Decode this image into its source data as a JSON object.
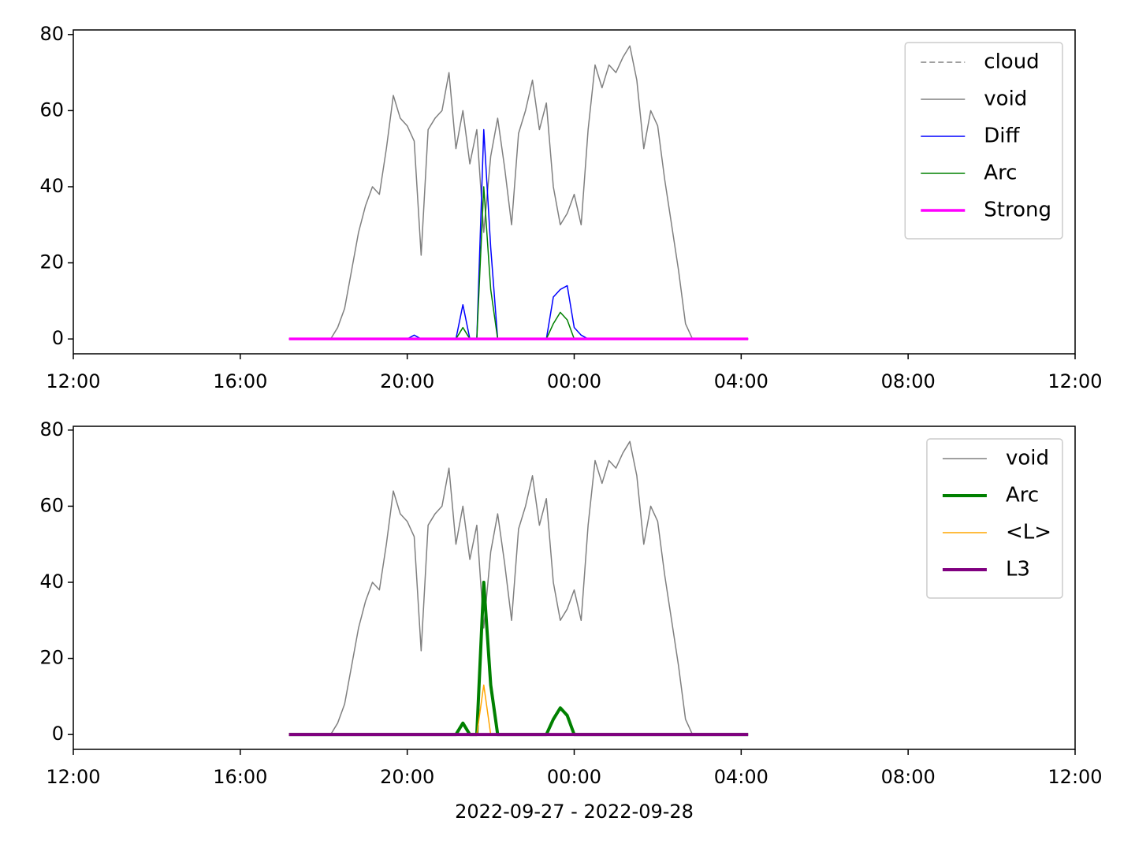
{
  "chart_data": [
    {
      "type": "line",
      "x": [
        "2022-09-27 17:10",
        "2022-09-27 17:20",
        "2022-09-27 17:30",
        "2022-09-27 17:40",
        "2022-09-27 17:50",
        "2022-09-27 18:00",
        "2022-09-27 18:10",
        "2022-09-27 18:20",
        "2022-09-27 18:30",
        "2022-09-27 18:40",
        "2022-09-27 18:50",
        "2022-09-27 19:00",
        "2022-09-27 19:10",
        "2022-09-27 19:20",
        "2022-09-27 19:30",
        "2022-09-27 19:40",
        "2022-09-27 19:50",
        "2022-09-27 20:00",
        "2022-09-27 20:10",
        "2022-09-27 20:20",
        "2022-09-27 20:30",
        "2022-09-27 20:40",
        "2022-09-27 20:50",
        "2022-09-27 21:00",
        "2022-09-27 21:10",
        "2022-09-27 21:20",
        "2022-09-27 21:30",
        "2022-09-27 21:40",
        "2022-09-27 21:50",
        "2022-09-27 22:00",
        "2022-09-27 22:10",
        "2022-09-27 22:20",
        "2022-09-27 22:30",
        "2022-09-27 22:40",
        "2022-09-27 22:50",
        "2022-09-27 23:00",
        "2022-09-27 23:10",
        "2022-09-27 23:20",
        "2022-09-27 23:30",
        "2022-09-27 23:40",
        "2022-09-27 23:50",
        "2022-09-28 00:00",
        "2022-09-28 00:10",
        "2022-09-28 00:20",
        "2022-09-28 00:30",
        "2022-09-28 00:40",
        "2022-09-28 00:50",
        "2022-09-28 01:00",
        "2022-09-28 01:10",
        "2022-09-28 01:20",
        "2022-09-28 01:30",
        "2022-09-28 01:40",
        "2022-09-28 01:50",
        "2022-09-28 02:00",
        "2022-09-28 02:10",
        "2022-09-28 02:20",
        "2022-09-28 02:30",
        "2022-09-28 02:40",
        "2022-09-28 02:50",
        "2022-09-28 03:00",
        "2022-09-28 03:10",
        "2022-09-28 03:20",
        "2022-09-28 03:30",
        "2022-09-28 03:40",
        "2022-09-28 03:50",
        "2022-09-28 04:00",
        "2022-09-28 04:10"
      ],
      "series": [
        {
          "name": "cloud",
          "color": "#808080",
          "linestyle": "dashed",
          "linewidth": 1.5,
          "values": [
            0,
            0,
            0,
            0,
            0,
            0,
            0,
            0,
            0,
            0,
            0,
            0,
            0,
            0,
            0,
            0,
            0,
            0,
            0,
            0,
            0,
            0,
            0,
            0,
            0,
            0,
            0,
            0,
            0,
            0,
            0,
            0,
            0,
            0,
            0,
            0,
            0,
            0,
            0,
            0,
            0,
            0,
            0,
            0,
            0,
            0,
            0,
            0,
            0,
            0,
            0,
            0,
            0,
            0,
            0,
            0,
            0,
            0,
            0,
            0,
            0,
            0,
            0,
            0,
            0,
            0,
            0
          ]
        },
        {
          "name": "void",
          "color": "#808080",
          "linestyle": "solid",
          "linewidth": 1.5,
          "values": [
            0,
            0,
            0,
            0,
            0,
            0,
            0,
            3,
            8,
            18,
            28,
            35,
            40,
            38,
            50,
            64,
            58,
            56,
            52,
            22,
            55,
            58,
            60,
            70,
            50,
            60,
            46,
            55,
            28,
            48,
            58,
            45,
            30,
            54,
            60,
            68,
            55,
            62,
            40,
            30,
            33,
            38,
            30,
            55,
            72,
            66,
            72,
            70,
            74,
            77,
            68,
            50,
            60,
            56,
            42,
            30,
            18,
            4,
            0,
            0,
            0,
            0,
            0,
            0,
            0,
            0,
            0
          ]
        },
        {
          "name": "Diff",
          "color": "#0000ff",
          "linestyle": "solid",
          "linewidth": 1.5,
          "values": [
            0,
            0,
            0,
            0,
            0,
            0,
            0,
            0,
            0,
            0,
            0,
            0,
            0,
            0,
            0,
            0,
            0,
            0,
            1,
            0,
            0,
            0,
            0,
            0,
            0,
            9,
            0,
            0,
            55,
            24,
            0,
            0,
            0,
            0,
            0,
            0,
            0,
            0,
            11,
            13,
            14,
            3,
            1,
            0,
            0,
            0,
            0,
            0,
            0,
            0,
            0,
            0,
            0,
            0,
            0,
            0,
            0,
            0,
            0,
            0,
            0,
            0,
            0,
            0,
            0,
            0,
            0
          ]
        },
        {
          "name": "Arc",
          "color": "#008000",
          "linestyle": "solid",
          "linewidth": 1.5,
          "values": [
            0,
            0,
            0,
            0,
            0,
            0,
            0,
            0,
            0,
            0,
            0,
            0,
            0,
            0,
            0,
            0,
            0,
            0,
            0,
            0,
            0,
            0,
            0,
            0,
            0,
            3,
            0,
            0,
            40,
            13,
            0,
            0,
            0,
            0,
            0,
            0,
            0,
            0,
            4,
            7,
            5,
            0,
            0,
            0,
            0,
            0,
            0,
            0,
            0,
            0,
            0,
            0,
            0,
            0,
            0,
            0,
            0,
            0,
            0,
            0,
            0,
            0,
            0,
            0,
            0,
            0,
            0
          ]
        },
        {
          "name": "Strong",
          "color": "#ff00ff",
          "linestyle": "solid",
          "linewidth": 3.5,
          "values": [
            0,
            0,
            0,
            0,
            0,
            0,
            0,
            0,
            0,
            0,
            0,
            0,
            0,
            0,
            0,
            0,
            0,
            0,
            0,
            0,
            0,
            0,
            0,
            0,
            0,
            0,
            0,
            0,
            0,
            0,
            0,
            0,
            0,
            0,
            0,
            0,
            0,
            0,
            0,
            0,
            0,
            0,
            0,
            0,
            0,
            0,
            0,
            0,
            0,
            0,
            0,
            0,
            0,
            0,
            0,
            0,
            0,
            0,
            0,
            0,
            0,
            0,
            0,
            0,
            0,
            0,
            0
          ]
        }
      ],
      "xlim": [
        "2022-09-27 12:00",
        "2022-09-28 12:00"
      ],
      "xticks": [
        {
          "value": "2022-09-27 12:00",
          "label": "12:00"
        },
        {
          "value": "2022-09-27 16:00",
          "label": "16:00"
        },
        {
          "value": "2022-09-27 20:00",
          "label": "20:00"
        },
        {
          "value": "2022-09-28 00:00",
          "label": "00:00"
        },
        {
          "value": "2022-09-28 04:00",
          "label": "04:00"
        },
        {
          "value": "2022-09-28 08:00",
          "label": "08:00"
        },
        {
          "value": "2022-09-28 12:00",
          "label": "12:00"
        }
      ],
      "ylim": [
        -3.9,
        81.2
      ],
      "yticks": [
        0,
        20,
        40,
        60,
        80
      ],
      "legend": "upper right"
    },
    {
      "type": "line",
      "x": [
        "2022-09-27 17:10",
        "2022-09-27 17:20",
        "2022-09-27 17:30",
        "2022-09-27 17:40",
        "2022-09-27 17:50",
        "2022-09-27 18:00",
        "2022-09-27 18:10",
        "2022-09-27 18:20",
        "2022-09-27 18:30",
        "2022-09-27 18:40",
        "2022-09-27 18:50",
        "2022-09-27 19:00",
        "2022-09-27 19:10",
        "2022-09-27 19:20",
        "2022-09-27 19:30",
        "2022-09-27 19:40",
        "2022-09-27 19:50",
        "2022-09-27 20:00",
        "2022-09-27 20:10",
        "2022-09-27 20:20",
        "2022-09-27 20:30",
        "2022-09-27 20:40",
        "2022-09-27 20:50",
        "2022-09-27 21:00",
        "2022-09-27 21:10",
        "2022-09-27 21:20",
        "2022-09-27 21:30",
        "2022-09-27 21:40",
        "2022-09-27 21:50",
        "2022-09-27 22:00",
        "2022-09-27 22:10",
        "2022-09-27 22:20",
        "2022-09-27 22:30",
        "2022-09-27 22:40",
        "2022-09-27 22:50",
        "2022-09-27 23:00",
        "2022-09-27 23:10",
        "2022-09-27 23:20",
        "2022-09-27 23:30",
        "2022-09-27 23:40",
        "2022-09-27 23:50",
        "2022-09-28 00:00",
        "2022-09-28 00:10",
        "2022-09-28 00:20",
        "2022-09-28 00:30",
        "2022-09-28 00:40",
        "2022-09-28 00:50",
        "2022-09-28 01:00",
        "2022-09-28 01:10",
        "2022-09-28 01:20",
        "2022-09-28 01:30",
        "2022-09-28 01:40",
        "2022-09-28 01:50",
        "2022-09-28 02:00",
        "2022-09-28 02:10",
        "2022-09-28 02:20",
        "2022-09-28 02:30",
        "2022-09-28 02:40",
        "2022-09-28 02:50",
        "2022-09-28 03:00",
        "2022-09-28 03:10",
        "2022-09-28 03:20",
        "2022-09-28 03:30",
        "2022-09-28 03:40",
        "2022-09-28 03:50",
        "2022-09-28 04:00",
        "2022-09-28 04:10"
      ],
      "series": [
        {
          "name": "void",
          "color": "#808080",
          "linestyle": "solid",
          "linewidth": 1.5,
          "values": [
            0,
            0,
            0,
            0,
            0,
            0,
            0,
            3,
            8,
            18,
            28,
            35,
            40,
            38,
            50,
            64,
            58,
            56,
            52,
            22,
            55,
            58,
            60,
            70,
            50,
            60,
            46,
            55,
            28,
            48,
            58,
            45,
            30,
            54,
            60,
            68,
            55,
            62,
            40,
            30,
            33,
            38,
            30,
            55,
            72,
            66,
            72,
            70,
            74,
            77,
            68,
            50,
            60,
            56,
            42,
            30,
            18,
            4,
            0,
            0,
            0,
            0,
            0,
            0,
            0,
            0,
            0
          ]
        },
        {
          "name": "Arc",
          "color": "#008000",
          "linestyle": "solid",
          "linewidth": 4,
          "values": [
            0,
            0,
            0,
            0,
            0,
            0,
            0,
            0,
            0,
            0,
            0,
            0,
            0,
            0,
            0,
            0,
            0,
            0,
            0,
            0,
            0,
            0,
            0,
            0,
            0,
            3,
            0,
            0,
            40,
            13,
            0,
            0,
            0,
            0,
            0,
            0,
            0,
            0,
            4,
            7,
            5,
            0,
            0,
            0,
            0,
            0,
            0,
            0,
            0,
            0,
            0,
            0,
            0,
            0,
            0,
            0,
            0,
            0,
            0,
            0,
            0,
            0,
            0,
            0,
            0,
            0,
            0
          ]
        },
        {
          "name": "<L>",
          "color": "#ffa500",
          "linestyle": "solid",
          "linewidth": 1.5,
          "values": [
            0,
            0,
            0,
            0,
            0,
            0,
            0,
            0,
            0,
            0,
            0,
            0,
            0,
            0,
            0,
            0,
            0,
            0,
            0,
            0,
            0,
            0,
            0,
            0,
            0,
            0,
            0,
            0,
            13,
            0,
            0,
            0,
            0,
            0,
            0,
            0,
            0,
            0,
            0,
            0,
            0,
            0,
            0,
            0,
            0,
            0,
            0,
            0,
            0,
            0,
            0,
            0,
            0,
            0,
            0,
            0,
            0,
            0,
            0,
            0,
            0,
            0,
            0,
            0,
            0,
            0,
            0
          ]
        },
        {
          "name": "L3",
          "color": "#800080",
          "linestyle": "solid",
          "linewidth": 4,
          "values": [
            0,
            0,
            0,
            0,
            0,
            0,
            0,
            0,
            0,
            0,
            0,
            0,
            0,
            0,
            0,
            0,
            0,
            0,
            0,
            0,
            0,
            0,
            0,
            0,
            0,
            0,
            0,
            0,
            0,
            0,
            0,
            0,
            0,
            0,
            0,
            0,
            0,
            0,
            0,
            0,
            0,
            0,
            0,
            0,
            0,
            0,
            0,
            0,
            0,
            0,
            0,
            0,
            0,
            0,
            0,
            0,
            0,
            0,
            0,
            0,
            0,
            0,
            0,
            0,
            0,
            0,
            0
          ]
        }
      ],
      "xlim": [
        "2022-09-27 12:00",
        "2022-09-28 12:00"
      ],
      "xticks": [
        {
          "value": "2022-09-27 12:00",
          "label": "12:00"
        },
        {
          "value": "2022-09-27 16:00",
          "label": "16:00"
        },
        {
          "value": "2022-09-27 20:00",
          "label": "20:00"
        },
        {
          "value": "2022-09-28 00:00",
          "label": "00:00"
        },
        {
          "value": "2022-09-28 04:00",
          "label": "04:00"
        },
        {
          "value": "2022-09-28 08:00",
          "label": "08:00"
        },
        {
          "value": "2022-09-28 12:00",
          "label": "12:00"
        }
      ],
      "ylim": [
        -3.9,
        81.0
      ],
      "yticks": [
        0,
        20,
        40,
        60,
        80
      ],
      "legend": "upper right",
      "xlabel": "2022-09-27 - 2022-09-28"
    }
  ]
}
